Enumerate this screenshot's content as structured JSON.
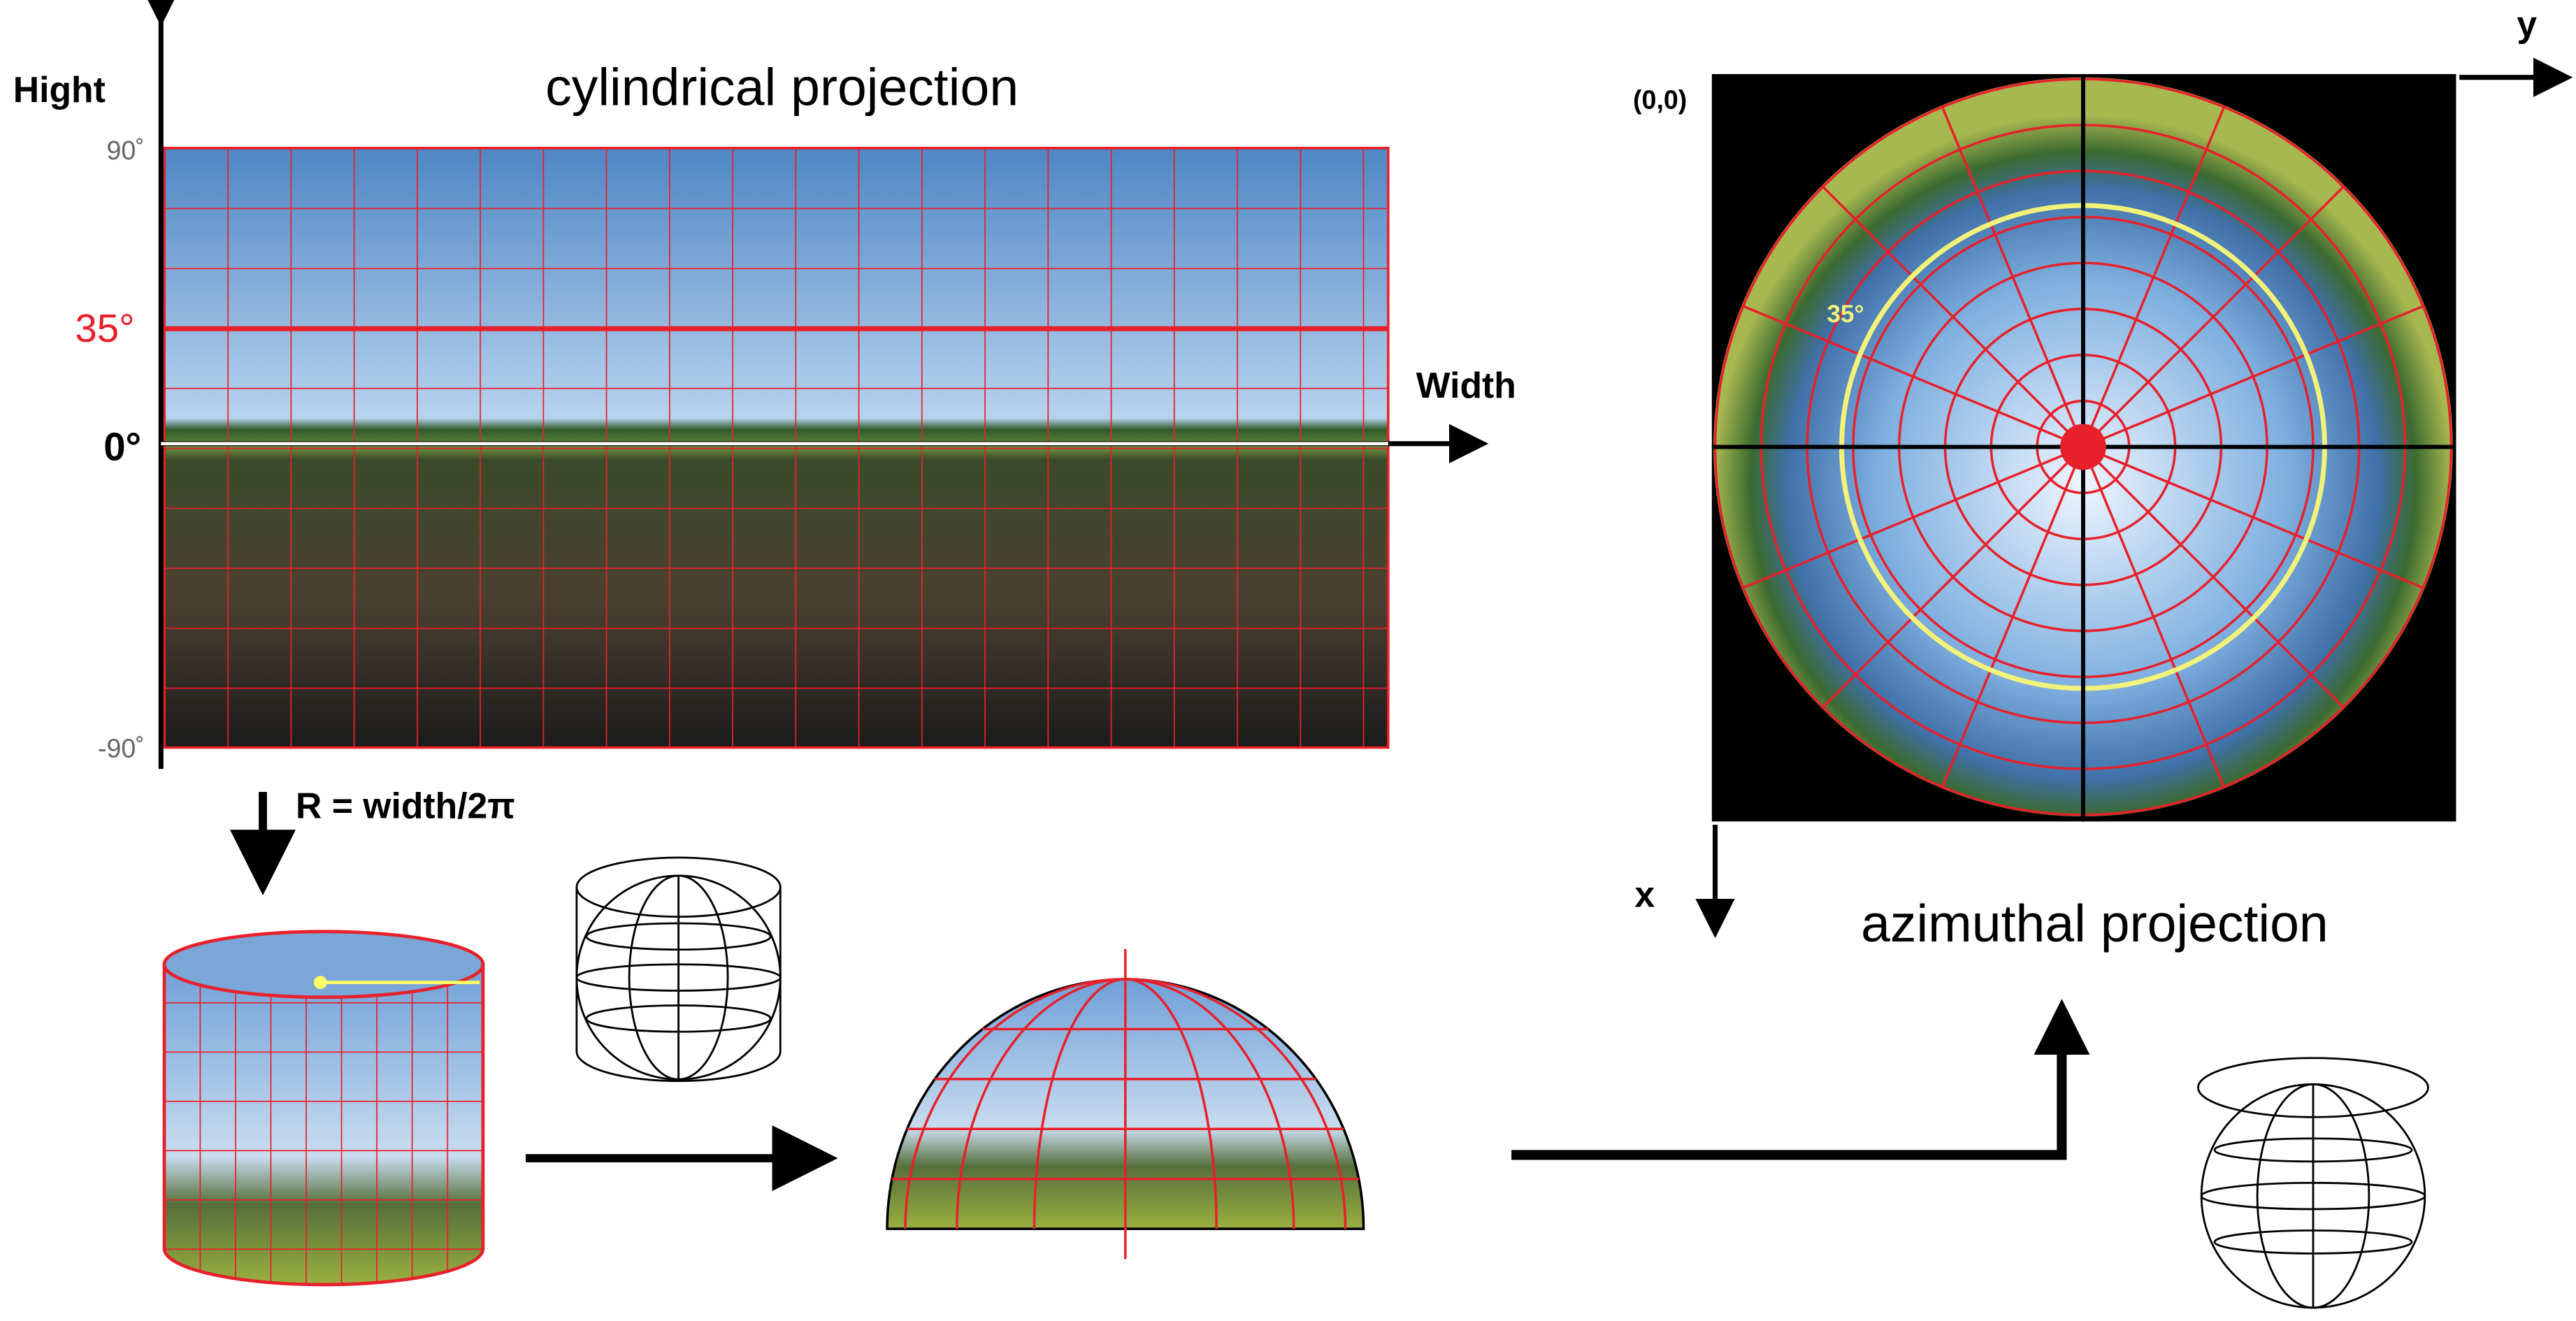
{
  "header": {
    "left_title": "cylindrical projection",
    "right_title": "azimuthal projection"
  },
  "left_axis": {
    "label": "Hight",
    "top": "90˚",
    "mark": "35°",
    "zero": "0°",
    "bottom": "-90˚",
    "x_label": "Width"
  },
  "cylinder": {
    "formula": "R = width/2π"
  },
  "right_axis": {
    "origin": "(0,0)",
    "y": "y",
    "x": "x",
    "ring": "35°"
  }
}
